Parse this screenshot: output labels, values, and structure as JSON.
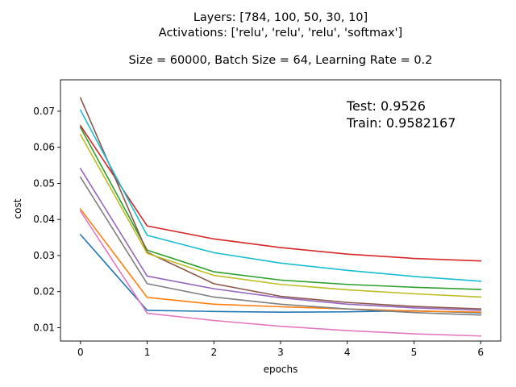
{
  "chart_data": {
    "type": "line",
    "title_lines": [
      "Layers: [784, 100, 50, 30, 10]",
      "Activations: ['relu', 'relu', 'relu', 'softmax']",
      "",
      "Size = 60000, Batch Size = 64, Learning Rate = 0.2"
    ],
    "xlabel": "epochs",
    "ylabel": "cost",
    "xlim": [
      -0.3,
      6.3
    ],
    "ylim": [
      0.0063,
      0.0787
    ],
    "x_ticks": [
      0,
      1,
      2,
      3,
      4,
      5,
      6
    ],
    "y_ticks": [
      0.01,
      0.02,
      0.03,
      0.04,
      0.05,
      0.06,
      0.07
    ],
    "y_tick_labels": [
      "0.01",
      "0.02",
      "0.03",
      "0.04",
      "0.05",
      "0.06",
      "0.07"
    ],
    "grid": false,
    "annotations": [
      "Test: 0.9526",
      "Train: 0.9582167"
    ],
    "x": [
      0,
      1,
      2,
      3,
      4,
      5,
      6
    ],
    "series": [
      {
        "color": "#1f77b4",
        "values": [
          0.0358,
          0.0148,
          0.0145,
          0.0143,
          0.0144,
          0.0147,
          0.0141
        ]
      },
      {
        "color": "#ff7f0e",
        "values": [
          0.0429,
          0.0184,
          0.0165,
          0.0158,
          0.0152,
          0.0146,
          0.0143
        ]
      },
      {
        "color": "#2ca02c",
        "values": [
          0.0655,
          0.0315,
          0.0255,
          0.0232,
          0.022,
          0.0212,
          0.0206
        ]
      },
      {
        "color": "#d62728",
        "values": [
          0.066,
          0.0382,
          0.0346,
          0.0322,
          0.0304,
          0.0292,
          0.0285
        ]
      },
      {
        "color": "#9467bd",
        "values": [
          0.0541,
          0.0243,
          0.0208,
          0.0183,
          0.0165,
          0.0155,
          0.0148
        ]
      },
      {
        "color": "#8c564b",
        "values": [
          0.0737,
          0.0309,
          0.0222,
          0.0187,
          0.017,
          0.0159,
          0.0152
        ]
      },
      {
        "color": "#e377c2",
        "values": [
          0.0423,
          0.014,
          0.012,
          0.0104,
          0.0092,
          0.0083,
          0.0077
        ]
      },
      {
        "color": "#7f7f7f",
        "values": [
          0.0517,
          0.0222,
          0.0185,
          0.0165,
          0.0152,
          0.0142,
          0.0135
        ]
      },
      {
        "color": "#bcbd22",
        "values": [
          0.0635,
          0.0306,
          0.0245,
          0.022,
          0.0205,
          0.0194,
          0.0185
        ]
      },
      {
        "color": "#17becf",
        "values": [
          0.0703,
          0.0356,
          0.0308,
          0.0279,
          0.0259,
          0.0242,
          0.0229
        ]
      }
    ]
  }
}
